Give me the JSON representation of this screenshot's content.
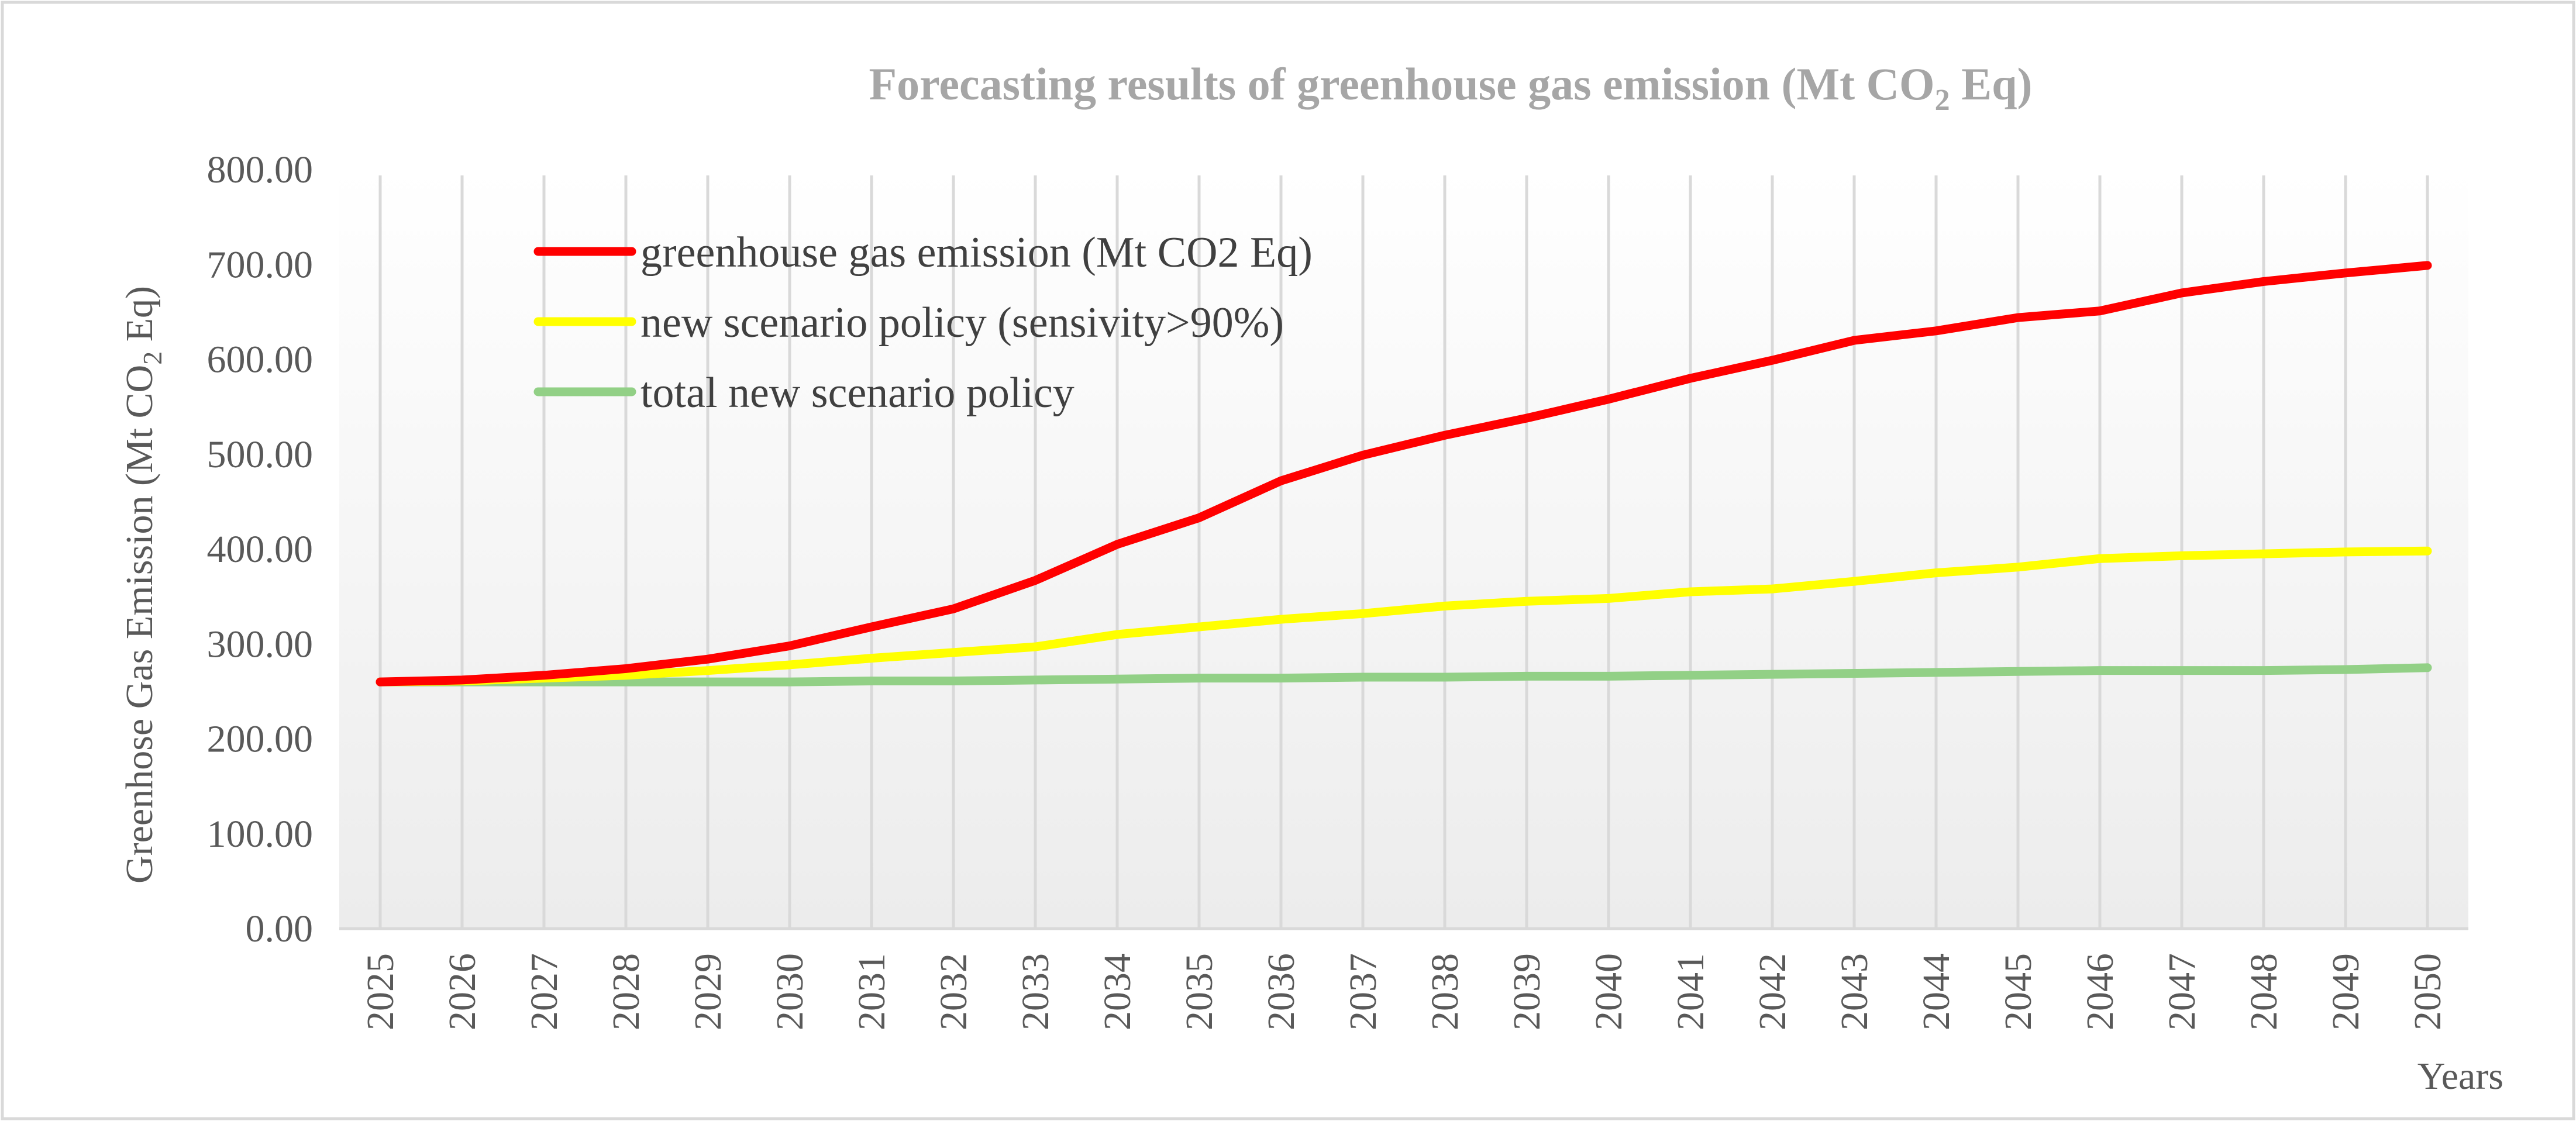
{
  "chart_data": {
    "type": "line",
    "title": "Forecasting results of greenhouse gas emission (Mt CO",
    "title_sub": "2",
    "title_end": " Eq)",
    "ylabel": "Greenhose Gas Emission (Mt CO",
    "ylabel_sub": "2",
    "ylabel_end": " Eq)",
    "xlabel": "Years",
    "ylim": [
      0,
      800
    ],
    "yticks": [
      "0.00",
      "100.00",
      "200.00",
      "300.00",
      "400.00",
      "500.00",
      "600.00",
      "700.00",
      "800.00"
    ],
    "x": [
      "2025",
      "2026",
      "2027",
      "2028",
      "2029",
      "2030",
      "2031",
      "2032",
      "2033",
      "2034",
      "2035",
      "2036",
      "2037",
      "2038",
      "2039",
      "2040",
      "2041",
      "2042",
      "2043",
      "2044",
      "2045",
      "2046",
      "2047",
      "2048",
      "2049",
      "2050"
    ],
    "legend_position": "top-left",
    "grid": "vertical",
    "series": [
      {
        "name": "greenhouse gas emission (Mt CO2 Eq)",
        "color": "#ff0000",
        "values": [
          260,
          262,
          267,
          274,
          284,
          298,
          318,
          337,
          367,
          405,
          433,
          472,
          499,
          520,
          538,
          558,
          580,
          599,
          620,
          630,
          644,
          651,
          670,
          682,
          691,
          699
        ]
      },
      {
        "name": "new scenario policy (sensivity>90%)",
        "color": "#ffff00",
        "values": [
          260,
          261,
          264,
          267,
          272,
          278,
          285,
          291,
          297,
          310,
          318,
          326,
          332,
          340,
          345,
          348,
          355,
          358,
          366,
          375,
          381,
          390,
          393,
          395,
          397,
          398
        ]
      },
      {
        "name": "total new scenario policy",
        "color": "#92d086",
        "values": [
          260,
          260,
          260,
          260,
          260,
          260,
          261,
          261,
          262,
          263,
          264,
          264,
          265,
          265,
          266,
          266,
          267,
          268,
          269,
          270,
          271,
          272,
          272,
          272,
          273,
          275
        ]
      }
    ]
  }
}
